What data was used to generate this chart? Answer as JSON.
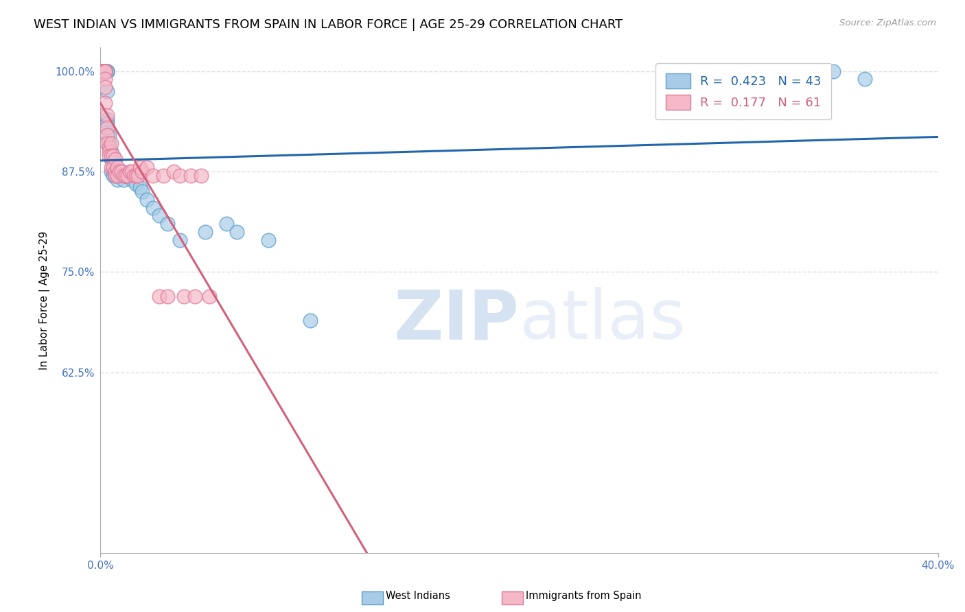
{
  "title": "WEST INDIAN VS IMMIGRANTS FROM SPAIN IN LABOR FORCE | AGE 25-29 CORRELATION CHART",
  "source": "Source: ZipAtlas.com",
  "ylabel": "In Labor Force | Age 25-29",
  "xlim": [
    0.0,
    0.4
  ],
  "ylim": [
    0.4,
    1.03
  ],
  "yticks": [
    0.625,
    0.75,
    0.875,
    1.0
  ],
  "ytick_labels": [
    "62.5%",
    "75.0%",
    "87.5%",
    "100.0%"
  ],
  "xticks": [
    0.0,
    0.4
  ],
  "xtick_labels": [
    "0.0%",
    "40.0%"
  ],
  "background_color": "#ffffff",
  "grid_color": "#dddddd",
  "watermark_zip": "ZIP",
  "watermark_atlas": "atlas",
  "west_indians_color": "#a8cce8",
  "west_indians_edge": "#5b9dc9",
  "spain_color": "#f4b8c8",
  "spain_edge": "#e07898",
  "west_indians_line_color": "#2166ac",
  "spain_line_color": "#d4607a",
  "west_indians_R": 0.423,
  "west_indians_N": 43,
  "spain_R": 0.177,
  "spain_N": 61,
  "title_fontsize": 13,
  "axis_label_fontsize": 11,
  "tick_fontsize": 11,
  "legend_fontsize": 13,
  "west_indians_x": [
    0.002,
    0.002,
    0.002,
    0.002,
    0.002,
    0.003,
    0.003,
    0.003,
    0.003,
    0.003,
    0.003,
    0.004,
    0.004,
    0.005,
    0.005,
    0.005,
    0.006,
    0.006,
    0.007,
    0.007,
    0.008,
    0.008,
    0.009,
    0.01,
    0.011,
    0.012,
    0.013,
    0.015,
    0.017,
    0.019,
    0.02,
    0.022,
    0.025,
    0.028,
    0.032,
    0.038,
    0.05,
    0.06,
    0.065,
    0.08,
    0.1,
    0.35,
    0.365
  ],
  "west_indians_y": [
    1.0,
    1.0,
    1.0,
    1.0,
    1.0,
    1.0,
    1.0,
    1.0,
    0.975,
    0.94,
    0.935,
    0.92,
    0.91,
    0.9,
    0.89,
    0.875,
    0.875,
    0.87,
    0.875,
    0.87,
    0.87,
    0.865,
    0.87,
    0.875,
    0.865,
    0.87,
    0.87,
    0.865,
    0.86,
    0.855,
    0.85,
    0.84,
    0.83,
    0.82,
    0.81,
    0.79,
    0.8,
    0.81,
    0.8,
    0.79,
    0.69,
    1.0,
    0.99
  ],
  "spain_x": [
    0.001,
    0.001,
    0.001,
    0.001,
    0.001,
    0.001,
    0.001,
    0.001,
    0.001,
    0.001,
    0.001,
    0.001,
    0.002,
    0.002,
    0.002,
    0.002,
    0.002,
    0.002,
    0.002,
    0.002,
    0.003,
    0.003,
    0.003,
    0.003,
    0.004,
    0.004,
    0.004,
    0.005,
    0.005,
    0.005,
    0.006,
    0.006,
    0.007,
    0.007,
    0.007,
    0.008,
    0.008,
    0.009,
    0.01,
    0.011,
    0.012,
    0.013,
    0.014,
    0.015,
    0.016,
    0.017,
    0.018,
    0.019,
    0.02,
    0.022,
    0.025,
    0.028,
    0.03,
    0.032,
    0.035,
    0.038,
    0.04,
    0.043,
    0.045,
    0.048,
    0.052
  ],
  "spain_y": [
    1.0,
    1.0,
    1.0,
    1.0,
    1.0,
    1.0,
    1.0,
    1.0,
    1.0,
    1.0,
    1.0,
    1.0,
    1.0,
    1.0,
    1.0,
    1.0,
    1.0,
    0.99,
    0.98,
    0.96,
    0.945,
    0.93,
    0.92,
    0.91,
    0.905,
    0.9,
    0.895,
    0.91,
    0.895,
    0.88,
    0.895,
    0.88,
    0.89,
    0.875,
    0.87,
    0.88,
    0.87,
    0.875,
    0.875,
    0.87,
    0.87,
    0.87,
    0.875,
    0.875,
    0.87,
    0.87,
    0.87,
    0.88,
    0.875,
    0.88,
    0.87,
    0.72,
    0.87,
    0.72,
    0.875,
    0.87,
    0.72,
    0.87,
    0.72,
    0.87,
    0.72
  ]
}
